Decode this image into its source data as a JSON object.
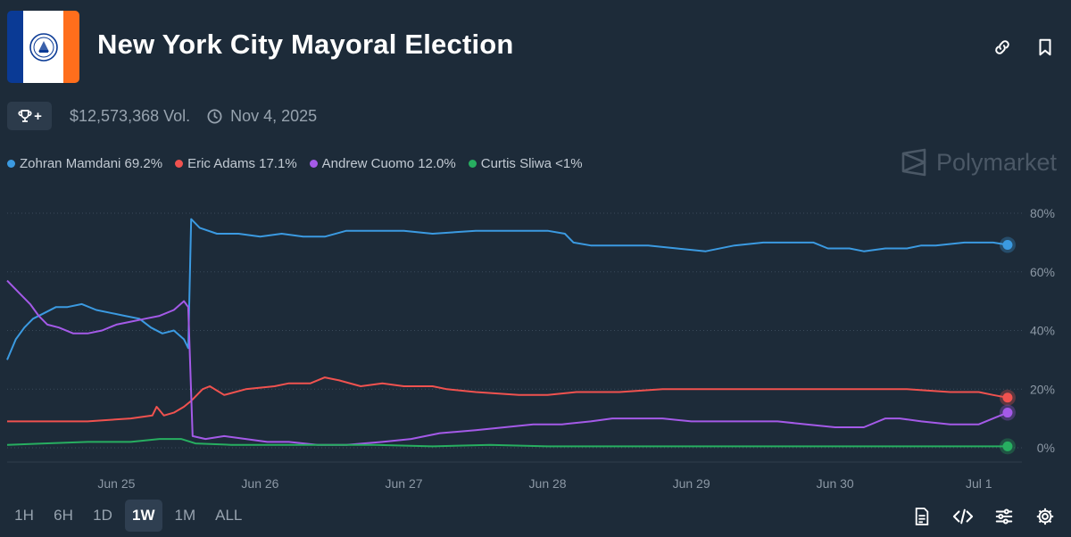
{
  "header": {
    "title": "New York City Mayoral Election",
    "volume": "$12,573,368 Vol.",
    "end_date": "Nov 4, 2025",
    "trophy_plus": "+"
  },
  "flag_colors": [
    "#0a3a95",
    "#ffffff",
    "#ff6e1c"
  ],
  "brand": {
    "name": "Polymarket",
    "icon": "polymarket-logo-icon"
  },
  "top_icons": [
    "link-icon",
    "bookmark-icon"
  ],
  "legend": [
    {
      "label": "Zohran Mamdani 69.2%",
      "color": "#3b9ae1"
    },
    {
      "label": "Eric Adams 17.1%",
      "color": "#f0524f"
    },
    {
      "label": "Andrew Cuomo 12.0%",
      "color": "#a45ae8"
    },
    {
      "label": "Curtis Sliwa <1%",
      "color": "#27ae60"
    }
  ],
  "time_ranges": [
    {
      "label": "1H",
      "active": false
    },
    {
      "label": "6H",
      "active": false
    },
    {
      "label": "1D",
      "active": false
    },
    {
      "label": "1W",
      "active": true
    },
    {
      "label": "1M",
      "active": false
    },
    {
      "label": "ALL",
      "active": false
    }
  ],
  "bottom_icons": [
    "document-icon",
    "embed-code-icon",
    "sliders-icon",
    "gear-icon"
  ],
  "chart_data": {
    "type": "line",
    "title": "",
    "xlabel": "",
    "ylabel": "",
    "x_ticks": [
      {
        "label": "Jun 25",
        "day": 25
      },
      {
        "label": "Jun 26",
        "day": 26
      },
      {
        "label": "Jun 27",
        "day": 27
      },
      {
        "label": "Jun 28",
        "day": 28
      },
      {
        "label": "Jun 29",
        "day": 29
      },
      {
        "label": "Jun 30",
        "day": 30
      },
      {
        "label": "Jul 1",
        "day": 31
      }
    ],
    "xlim": [
      24.24,
      31.25
    ],
    "y_ticks": [
      "0%",
      "20%",
      "40%",
      "60%",
      "80%"
    ],
    "ylim": [
      0,
      80
    ],
    "grid": "horizontal-dotted",
    "legend": "top-left",
    "series": [
      {
        "name": "Zohran Mamdani",
        "color": "#3b9ae1",
        "points": [
          [
            24.24,
            30
          ],
          [
            24.3,
            37
          ],
          [
            24.36,
            41
          ],
          [
            24.42,
            44
          ],
          [
            24.5,
            46
          ],
          [
            24.58,
            48
          ],
          [
            24.66,
            48
          ],
          [
            24.76,
            49
          ],
          [
            24.86,
            47
          ],
          [
            24.96,
            46
          ],
          [
            25.06,
            45
          ],
          [
            25.16,
            44
          ],
          [
            25.24,
            41
          ],
          [
            25.32,
            39
          ],
          [
            25.4,
            40
          ],
          [
            25.47,
            37
          ],
          [
            25.5,
            34
          ],
          [
            25.52,
            78
          ],
          [
            25.58,
            75
          ],
          [
            25.7,
            73
          ],
          [
            25.85,
            73
          ],
          [
            26.0,
            72
          ],
          [
            26.15,
            73
          ],
          [
            26.3,
            72
          ],
          [
            26.45,
            72
          ],
          [
            26.6,
            74
          ],
          [
            26.8,
            74
          ],
          [
            27.0,
            74
          ],
          [
            27.2,
            73
          ],
          [
            27.5,
            74
          ],
          [
            27.8,
            74
          ],
          [
            28.0,
            74
          ],
          [
            28.12,
            73
          ],
          [
            28.18,
            70
          ],
          [
            28.3,
            69
          ],
          [
            28.5,
            69
          ],
          [
            28.7,
            69
          ],
          [
            28.9,
            68
          ],
          [
            29.1,
            67
          ],
          [
            29.3,
            69
          ],
          [
            29.5,
            70
          ],
          [
            29.7,
            70
          ],
          [
            29.85,
            70
          ],
          [
            29.95,
            68
          ],
          [
            30.1,
            68
          ],
          [
            30.2,
            67
          ],
          [
            30.35,
            68
          ],
          [
            30.5,
            68
          ],
          [
            30.6,
            69
          ],
          [
            30.7,
            69
          ],
          [
            30.9,
            70
          ],
          [
            31.1,
            70
          ],
          [
            31.2,
            69.2
          ]
        ]
      },
      {
        "name": "Eric Adams",
        "color": "#f0524f",
        "points": [
          [
            24.24,
            9
          ],
          [
            24.5,
            9
          ],
          [
            24.8,
            9
          ],
          [
            25.1,
            10
          ],
          [
            25.25,
            11
          ],
          [
            25.28,
            14
          ],
          [
            25.33,
            11
          ],
          [
            25.4,
            12
          ],
          [
            25.47,
            14
          ],
          [
            25.52,
            16
          ],
          [
            25.6,
            20
          ],
          [
            25.65,
            21
          ],
          [
            25.75,
            18
          ],
          [
            25.9,
            20
          ],
          [
            26.1,
            21
          ],
          [
            26.2,
            22
          ],
          [
            26.35,
            22
          ],
          [
            26.45,
            24
          ],
          [
            26.55,
            23
          ],
          [
            26.7,
            21
          ],
          [
            26.85,
            22
          ],
          [
            27.0,
            21
          ],
          [
            27.2,
            21
          ],
          [
            27.3,
            20
          ],
          [
            27.5,
            19
          ],
          [
            27.8,
            18
          ],
          [
            28.0,
            18
          ],
          [
            28.2,
            19
          ],
          [
            28.5,
            19
          ],
          [
            28.8,
            20
          ],
          [
            29.1,
            20
          ],
          [
            29.4,
            20
          ],
          [
            29.7,
            20
          ],
          [
            30.0,
            20
          ],
          [
            30.3,
            20
          ],
          [
            30.5,
            20
          ],
          [
            30.8,
            19
          ],
          [
            31.0,
            19
          ],
          [
            31.1,
            18
          ],
          [
            31.2,
            17.1
          ]
        ]
      },
      {
        "name": "Andrew Cuomo",
        "color": "#a45ae8",
        "points": [
          [
            24.24,
            57
          ],
          [
            24.32,
            53
          ],
          [
            24.4,
            49
          ],
          [
            24.46,
            45
          ],
          [
            24.52,
            42
          ],
          [
            24.6,
            41
          ],
          [
            24.7,
            39
          ],
          [
            24.8,
            39
          ],
          [
            24.9,
            40
          ],
          [
            25.0,
            42
          ],
          [
            25.1,
            43
          ],
          [
            25.2,
            44
          ],
          [
            25.3,
            45
          ],
          [
            25.4,
            47
          ],
          [
            25.47,
            50
          ],
          [
            25.5,
            48
          ],
          [
            25.53,
            4
          ],
          [
            25.62,
            3
          ],
          [
            25.75,
            4
          ],
          [
            25.9,
            3
          ],
          [
            26.05,
            2
          ],
          [
            26.2,
            2
          ],
          [
            26.4,
            1
          ],
          [
            26.6,
            1
          ],
          [
            26.85,
            2
          ],
          [
            27.05,
            3
          ],
          [
            27.25,
            5
          ],
          [
            27.5,
            6
          ],
          [
            27.7,
            7
          ],
          [
            27.9,
            8
          ],
          [
            28.1,
            8
          ],
          [
            28.3,
            9
          ],
          [
            28.45,
            10
          ],
          [
            28.6,
            10
          ],
          [
            28.8,
            10
          ],
          [
            29.0,
            9
          ],
          [
            29.2,
            9
          ],
          [
            29.4,
            9
          ],
          [
            29.6,
            9
          ],
          [
            29.8,
            8
          ],
          [
            30.0,
            7
          ],
          [
            30.2,
            7
          ],
          [
            30.35,
            10
          ],
          [
            30.45,
            10
          ],
          [
            30.6,
            9
          ],
          [
            30.8,
            8
          ],
          [
            31.0,
            8
          ],
          [
            31.1,
            10
          ],
          [
            31.2,
            12.0
          ]
        ]
      },
      {
        "name": "Curtis Sliwa",
        "color": "#27ae60",
        "points": [
          [
            24.24,
            1
          ],
          [
            24.5,
            1.5
          ],
          [
            24.8,
            2
          ],
          [
            25.1,
            2
          ],
          [
            25.3,
            3
          ],
          [
            25.45,
            3
          ],
          [
            25.55,
            1.5
          ],
          [
            25.8,
            1
          ],
          [
            26.0,
            1
          ],
          [
            26.4,
            1
          ],
          [
            26.8,
            1
          ],
          [
            27.2,
            0.5
          ],
          [
            27.6,
            1
          ],
          [
            28.0,
            0.5
          ],
          [
            28.4,
            0.5
          ],
          [
            28.8,
            0.5
          ],
          [
            29.2,
            0.5
          ],
          [
            29.6,
            0.5
          ],
          [
            30.0,
            0.5
          ],
          [
            30.4,
            0.5
          ],
          [
            30.8,
            0.5
          ],
          [
            31.2,
            0.5
          ]
        ]
      }
    ]
  }
}
